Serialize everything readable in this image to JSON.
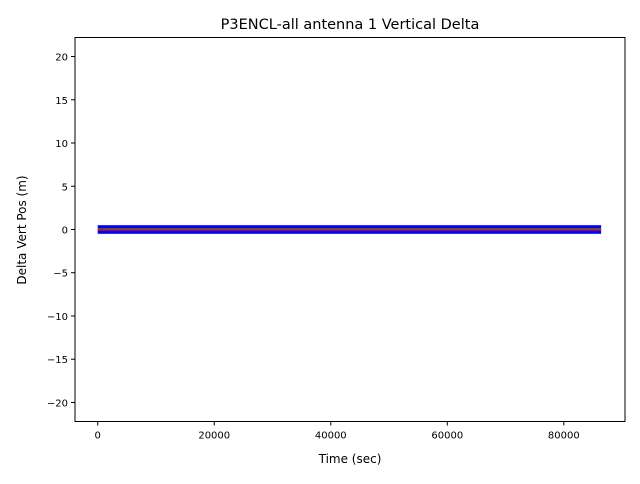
{
  "chart_data": {
    "type": "line",
    "title": "P3ENCL-all antenna 1 Vertical Delta",
    "xlabel": "Time (sec)",
    "ylabel": "Delta Vert Pos (m)",
    "xlim": [
      -3900,
      90500
    ],
    "ylim": [
      -22.2,
      22.2
    ],
    "xticks": [
      0,
      20000,
      40000,
      60000,
      80000
    ],
    "xtick_labels": [
      "0",
      "20000",
      "40000",
      "60000",
      "80000"
    ],
    "yticks": [
      20,
      15,
      10,
      5,
      0,
      -5,
      -10,
      -15,
      -20
    ],
    "ytick_labels": [
      "20",
      "15",
      "10",
      "5",
      "0",
      "−5",
      "−10",
      "−15",
      "−20"
    ],
    "grid": false,
    "series": [
      {
        "kind": "band",
        "color": "#0000ff",
        "x": [
          0,
          86400
        ],
        "ymin": -0.5,
        "ymax": 0.5
      },
      {
        "kind": "line",
        "color": "#00c000",
        "x": [
          0,
          86400
        ],
        "y": [
          0.05,
          0.05
        ]
      },
      {
        "kind": "line",
        "color": "#ff0000",
        "x": [
          0,
          86400
        ],
        "y": [
          -0.05,
          -0.05
        ]
      }
    ]
  }
}
